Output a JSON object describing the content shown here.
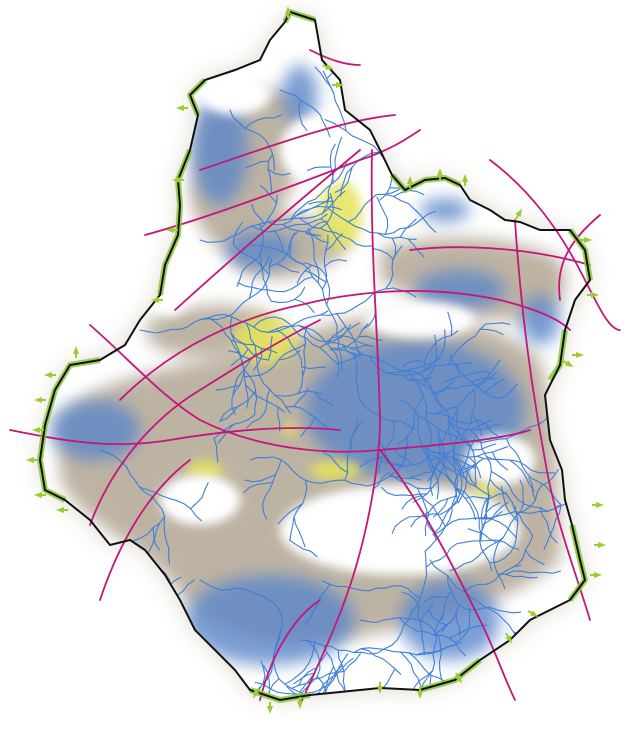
{
  "map": {
    "colors": {
      "background": "#ffffff",
      "border": "#111111",
      "green_corridor": "#8cc63f",
      "green_arrow": "#9acd32",
      "forest_zone": "#a89a85",
      "water_zone": "#5b86c9",
      "rivers": "#3f7fd6",
      "roads": "#c2187a",
      "yellow_zone": "#e6e35a"
    },
    "legend": [],
    "labels": []
  }
}
